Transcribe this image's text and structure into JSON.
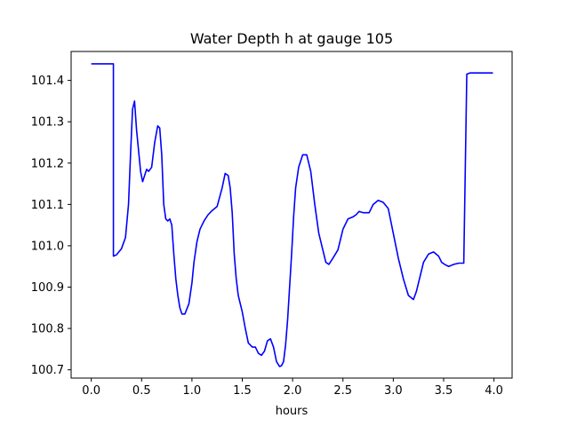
{
  "chart_data": {
    "type": "line",
    "title": "Water Depth h at gauge 105",
    "xlabel": "hours",
    "ylabel": "",
    "xlim": [
      -0.2,
      4.18
    ],
    "ylim": [
      100.68,
      101.47
    ],
    "xticks": [
      0.0,
      0.5,
      1.0,
      1.5,
      2.0,
      2.5,
      3.0,
      3.5,
      4.0
    ],
    "xtick_labels": [
      "0.0",
      "0.5",
      "1.0",
      "1.5",
      "2.0",
      "2.5",
      "3.0",
      "3.5",
      "4.0"
    ],
    "yticks": [
      100.7,
      100.8,
      100.9,
      101.0,
      101.1,
      101.2,
      101.3,
      101.4
    ],
    "ytick_labels": [
      "100.7",
      "100.8",
      "100.9",
      "101.0",
      "101.1",
      "101.2",
      "101.3",
      "101.4"
    ],
    "grid": false,
    "series": [
      {
        "color": "#0000ff",
        "x": [
          0.0,
          0.22,
          0.22,
          0.25,
          0.3,
          0.34,
          0.37,
          0.39,
          0.41,
          0.43,
          0.45,
          0.47,
          0.49,
          0.51,
          0.53,
          0.55,
          0.57,
          0.6,
          0.63,
          0.66,
          0.68,
          0.7,
          0.72,
          0.74,
          0.76,
          0.78,
          0.8,
          0.82,
          0.84,
          0.86,
          0.88,
          0.9,
          0.93,
          0.97,
          1.0,
          1.02,
          1.05,
          1.08,
          1.12,
          1.16,
          1.2,
          1.25,
          1.3,
          1.33,
          1.36,
          1.38,
          1.4,
          1.42,
          1.44,
          1.46,
          1.48,
          1.5,
          1.53,
          1.56,
          1.6,
          1.63,
          1.66,
          1.69,
          1.72,
          1.75,
          1.78,
          1.81,
          1.84,
          1.87,
          1.89,
          1.91,
          1.93,
          1.95,
          1.97,
          1.99,
          2.01,
          2.03,
          2.06,
          2.1,
          2.14,
          2.18,
          2.22,
          2.26,
          2.3,
          2.33,
          2.36,
          2.4,
          2.45,
          2.5,
          2.55,
          2.6,
          2.63,
          2.66,
          2.7,
          2.73,
          2.76,
          2.8,
          2.85,
          2.9,
          2.95,
          3.0,
          3.05,
          3.1,
          3.15,
          3.2,
          3.23,
          3.27,
          3.3,
          3.35,
          3.4,
          3.45,
          3.48,
          3.51,
          3.55,
          3.6,
          3.65,
          3.7,
          3.73,
          3.76,
          3.8,
          3.84,
          3.88,
          3.92,
          3.96,
          3.97,
          3.97,
          3.99
        ],
        "y": [
          101.44,
          101.44,
          100.975,
          100.978,
          100.993,
          101.02,
          101.1,
          101.22,
          101.33,
          101.35,
          101.28,
          101.23,
          101.18,
          101.155,
          101.17,
          101.185,
          101.18,
          101.19,
          101.25,
          101.29,
          101.285,
          101.22,
          101.1,
          101.065,
          101.06,
          101.065,
          101.05,
          100.98,
          100.92,
          100.88,
          100.85,
          100.835,
          100.835,
          100.86,
          100.91,
          100.96,
          101.01,
          101.04,
          101.06,
          101.075,
          101.085,
          101.095,
          101.14,
          101.175,
          101.17,
          101.14,
          101.08,
          100.98,
          100.92,
          100.88,
          100.86,
          100.84,
          100.8,
          100.765,
          100.755,
          100.755,
          100.74,
          100.735,
          100.745,
          100.77,
          100.775,
          100.755,
          100.72,
          100.708,
          100.71,
          100.72,
          100.76,
          100.82,
          100.9,
          100.98,
          101.07,
          101.14,
          101.19,
          101.22,
          101.22,
          101.18,
          101.1,
          101.03,
          100.99,
          100.96,
          100.955,
          100.97,
          100.99,
          101.04,
          101.065,
          101.07,
          101.075,
          101.083,
          101.08,
          101.08,
          101.08,
          101.1,
          101.11,
          101.105,
          101.09,
          101.03,
          100.97,
          100.92,
          100.88,
          100.87,
          100.89,
          100.93,
          100.96,
          100.98,
          100.985,
          100.975,
          100.96,
          100.955,
          100.95,
          100.955,
          100.958,
          100.958,
          101.415,
          101.418,
          101.418,
          101.418,
          101.418,
          101.418,
          101.418,
          101.418,
          101.418,
          101.418
        ]
      }
    ]
  }
}
